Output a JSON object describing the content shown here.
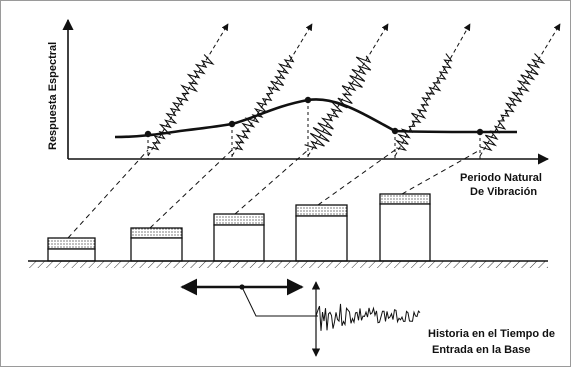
{
  "labels": {
    "y_axis": "Respuesta Espectral",
    "x_axis_line1": "Periodo Natural",
    "x_axis_line2": "De Vibración",
    "input_line1": "Historia en el Tiempo de",
    "input_line2": "Entrada en la Base"
  },
  "structures": [
    {
      "name": "structure-1",
      "stiffness_rank": 1
    },
    {
      "name": "structure-2",
      "stiffness_rank": 2
    },
    {
      "name": "structure-3",
      "stiffness_rank": 3
    },
    {
      "name": "structure-4",
      "stiffness_rank": 4
    },
    {
      "name": "structure-5",
      "stiffness_rank": 5
    }
  ],
  "colors": {
    "ink": "#111111",
    "background": "#ffffff",
    "border": "#9a9a9a"
  }
}
